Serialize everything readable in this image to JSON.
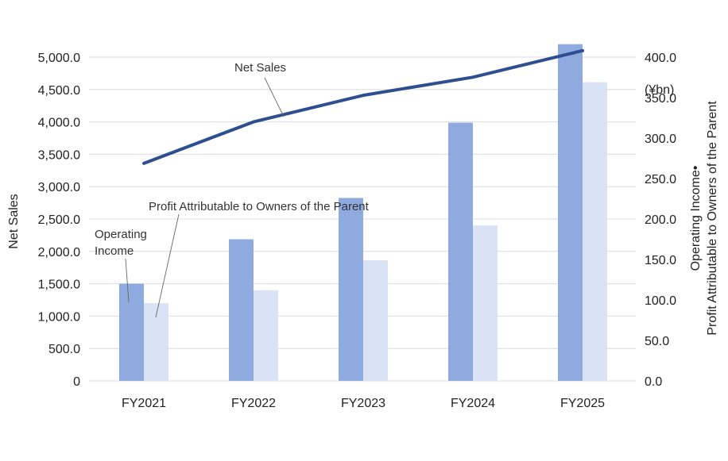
{
  "chart_data": {
    "type": "bar",
    "categories": [
      "FY2021",
      "FY2022",
      "FY2023",
      "FY2024",
      "FY2025"
    ],
    "line_series": {
      "name": "Net Sales",
      "axis": "left",
      "values": [
        3360,
        4000,
        4410,
        4690,
        5100
      ],
      "color": "#2e4f8f"
    },
    "bar_series": [
      {
        "name": "Operating Income",
        "axis": "right",
        "values": [
          120,
          175,
          226,
          319,
          416
        ],
        "color": "#8eaadf"
      },
      {
        "name": "Profit Attributable to Owners of the Parent",
        "axis": "right",
        "values": [
          96,
          112,
          149,
          192,
          369
        ],
        "color": "#d9e3f5"
      }
    ],
    "y_left": {
      "label": "Net Sales",
      "range": [
        0,
        5000
      ],
      "ticks": [
        "0",
        "500.0",
        "1,000.0",
        "1,500.0",
        "2,000.0",
        "2,500.0",
        "3,000.0",
        "3,500.0",
        "4,000.0",
        "4,500.0",
        "5,000.0"
      ]
    },
    "y_right": {
      "unit": "(¥bn)",
      "label_line1": "Operating Income•",
      "label_line2": "Profit Attributable to Owners of the Parent",
      "range": [
        0,
        400
      ],
      "ticks": [
        "0.0",
        "50.0",
        "100.0",
        "150.0",
        "200.0",
        "250.0",
        "300.0",
        "350.0",
        "400.0"
      ]
    },
    "annotations": {
      "net_sales": "Net Sales",
      "profit": "Profit Attributable to Owners of the Parent",
      "operating_line1": "Operating",
      "operating_line2": "Income"
    },
    "grid": true
  }
}
